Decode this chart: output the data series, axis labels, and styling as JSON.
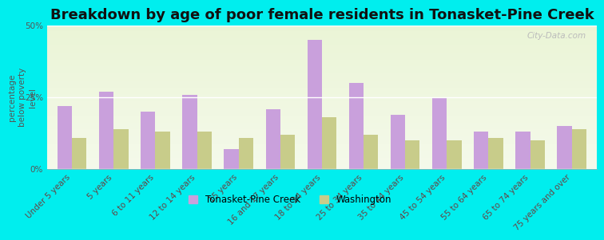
{
  "title": "Breakdown by age of poor female residents in Tonasket-Pine Creek",
  "categories": [
    "Under 5 years",
    "5 years",
    "6 to 11 years",
    "12 to 14 years",
    "15 years",
    "16 and 17 years",
    "18 to 24 years",
    "25 to 34 years",
    "35 to 44 years",
    "45 to 54 years",
    "55 to 64 years",
    "65 to 74 years",
    "75 years and over"
  ],
  "tonasket_values": [
    22,
    27,
    20,
    26,
    7,
    21,
    45,
    30,
    19,
    25,
    13,
    13,
    15
  ],
  "washington_values": [
    11,
    14,
    13,
    13,
    11,
    12,
    18,
    12,
    10,
    10,
    11,
    10,
    14
  ],
  "tonasket_color": "#c9a0dc",
  "washington_color": "#c8cc8a",
  "outer_bg": "#00eeee",
  "ylabel": "percentage\nbelow poverty\nlevel",
  "ylim": [
    0,
    50
  ],
  "yticks": [
    0,
    25,
    50
  ],
  "ytick_labels": [
    "0%",
    "25%",
    "50%"
  ],
  "bar_width": 0.35,
  "legend_tonasket": "Tonasket-Pine Creek",
  "legend_washington": "Washington",
  "title_fontsize": 13,
  "axis_label_fontsize": 7.5,
  "tick_fontsize": 7.5
}
